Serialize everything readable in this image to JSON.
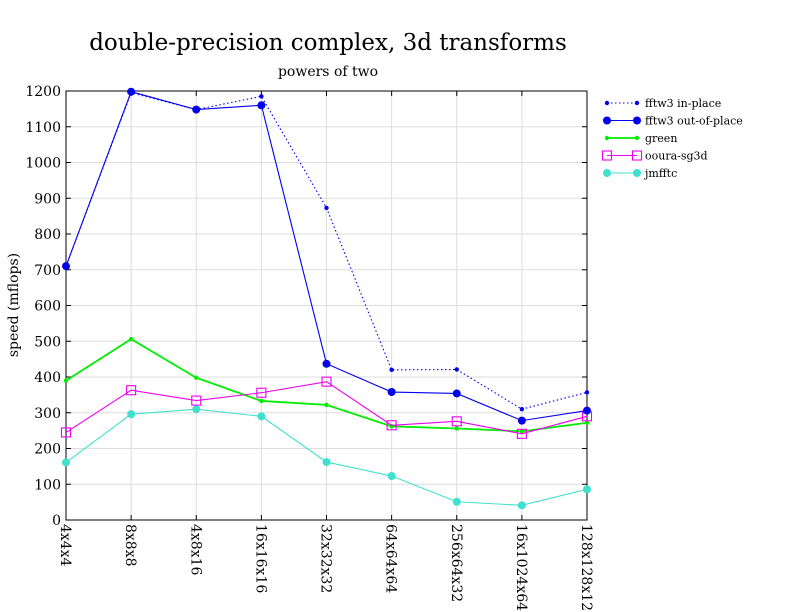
{
  "chart_data": {
    "type": "line",
    "title": "double-precision complex, 3d transforms",
    "subtitle": "powers of two",
    "xlabel": "",
    "ylabel": "speed (mflops)",
    "ylim": [
      0,
      1200
    ],
    "yticks": [
      0,
      100,
      200,
      300,
      400,
      500,
      600,
      700,
      800,
      900,
      1000,
      1100,
      1200
    ],
    "grid": true,
    "legend_position": "right",
    "categories": [
      "4x4x4",
      "8x8x8",
      "4x8x16",
      "16x16x16",
      "32x32x32",
      "64x64x64",
      "256x64x32",
      "16x1024x64",
      "128x128x128"
    ],
    "series": [
      {
        "name": "fftw3 in-place",
        "color": "#0000ee",
        "style": "dotted",
        "marker": "small-dot",
        "values": [
          710,
          1195,
          1148,
          1185,
          873,
          420,
          421,
          310,
          357
        ]
      },
      {
        "name": "fftw3 out-of-place",
        "color": "#0000ee",
        "style": "solid",
        "marker": "dot",
        "values": [
          710,
          1198,
          1148,
          1160,
          437,
          358,
          354,
          278,
          306
        ]
      },
      {
        "name": "green",
        "color": "#00ee00",
        "style": "solid",
        "marker": "small-dot",
        "values": [
          390,
          506,
          398,
          333,
          322,
          262,
          256,
          248,
          272
        ]
      },
      {
        "name": "ooura-sg3d",
        "color": "#ee00ee",
        "style": "solid",
        "marker": "open-square",
        "values": [
          245,
          363,
          334,
          356,
          387,
          265,
          276,
          241,
          290
        ]
      },
      {
        "name": "jmfftc",
        "color": "#40e0d0",
        "style": "solid",
        "marker": "dot",
        "values": [
          161,
          296,
          310,
          290,
          162,
          123,
          51,
          41,
          86
        ]
      }
    ]
  }
}
